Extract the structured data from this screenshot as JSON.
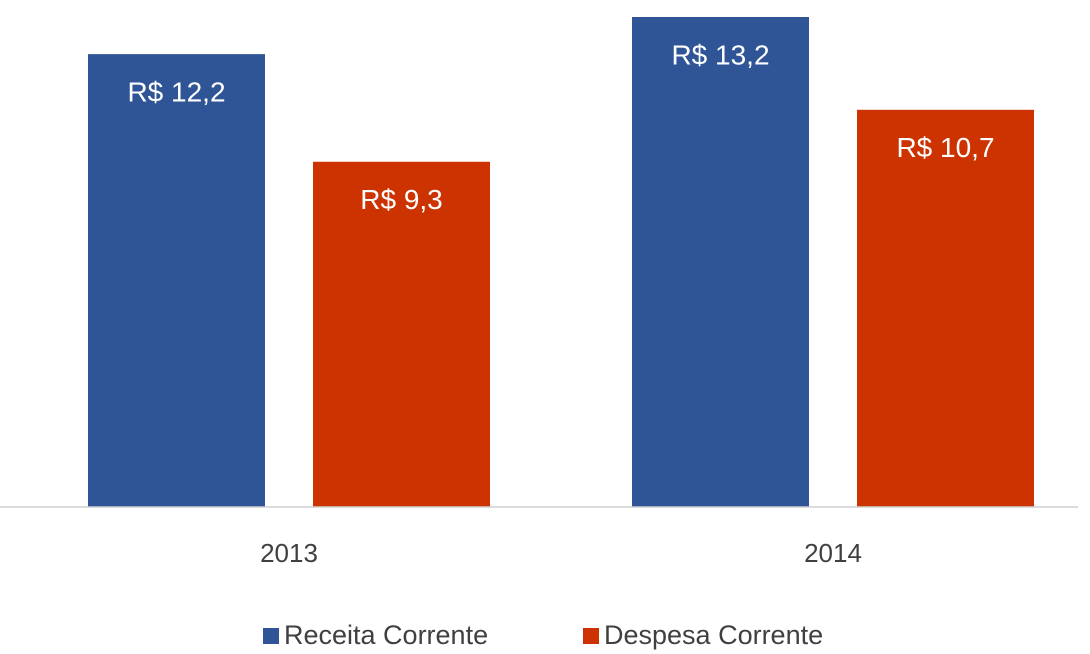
{
  "chart_data": {
    "type": "bar",
    "categories": [
      "2013",
      "2014"
    ],
    "series": [
      {
        "name": "Receita Corrente",
        "color": "#2f5597",
        "values": [
          12.2,
          13.2
        ],
        "value_labels": [
          "R$ 12,2",
          "R$ 13,2"
        ]
      },
      {
        "name": "Despesa Corrente",
        "color": "#cc3300",
        "values": [
          9.3,
          10.7
        ],
        "value_labels": [
          "R$ 9,3",
          "R$ 10,7"
        ]
      }
    ],
    "ylim": [
      0,
      13.2
    ],
    "legend": "bottom"
  }
}
